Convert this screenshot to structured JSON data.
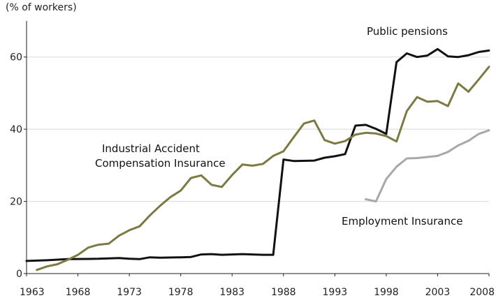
{
  "chart_data": {
    "type": "line",
    "title": "",
    "ylabel": "(% of workers)",
    "xlabel": "",
    "xlim": [
      1963,
      2008
    ],
    "ylim": [
      0,
      70
    ],
    "x_ticks": [
      1963,
      1968,
      1973,
      1978,
      1983,
      1988,
      1993,
      1998,
      2003,
      2008
    ],
    "y_ticks": [
      0,
      20,
      40,
      60
    ],
    "grid": "horizontal",
    "series": [
      {
        "name": "Public pensions",
        "color": "#111111",
        "points": [
          [
            1963,
            3.5
          ],
          [
            1965,
            3.7
          ],
          [
            1967,
            4.0
          ],
          [
            1970,
            4.1
          ],
          [
            1972,
            4.3
          ],
          [
            1973,
            4.1
          ],
          [
            1974,
            4.0
          ],
          [
            1975,
            4.5
          ],
          [
            1976,
            4.4
          ],
          [
            1978,
            4.5
          ],
          [
            1979,
            4.6
          ],
          [
            1980,
            5.3
          ],
          [
            1981,
            5.4
          ],
          [
            1982,
            5.2
          ],
          [
            1983,
            5.3
          ],
          [
            1984,
            5.4
          ],
          [
            1986,
            5.2
          ],
          [
            1987,
            5.2
          ],
          [
            1988,
            31.6
          ],
          [
            1989,
            31.2
          ],
          [
            1991,
            31.3
          ],
          [
            1992,
            32.1
          ],
          [
            1993,
            32.5
          ],
          [
            1994,
            33.1
          ],
          [
            1995,
            41.0
          ],
          [
            1996,
            41.2
          ],
          [
            1997,
            40.1
          ],
          [
            1998,
            38.7
          ],
          [
            1999,
            58.6
          ],
          [
            2000,
            61.0
          ],
          [
            2001,
            60.0
          ],
          [
            2002,
            60.4
          ],
          [
            2003,
            62.2
          ],
          [
            2004,
            60.2
          ],
          [
            2005,
            60.0
          ],
          [
            2006,
            60.5
          ],
          [
            2007,
            61.4
          ],
          [
            2008,
            61.8
          ]
        ]
      },
      {
        "name": "Industrial Accident Compensation Insurance",
        "color": "#7a7a42",
        "points": [
          [
            1964,
            1.0
          ],
          [
            1965,
            2.0
          ],
          [
            1966,
            2.6
          ],
          [
            1967,
            3.8
          ],
          [
            1968,
            5.2
          ],
          [
            1969,
            7.2
          ],
          [
            1970,
            8.0
          ],
          [
            1971,
            8.3
          ],
          [
            1972,
            10.5
          ],
          [
            1973,
            12.0
          ],
          [
            1974,
            13.1
          ],
          [
            1975,
            16.1
          ],
          [
            1976,
            18.8
          ],
          [
            1977,
            21.2
          ],
          [
            1978,
            23.0
          ],
          [
            1979,
            26.5
          ],
          [
            1980,
            27.2
          ],
          [
            1981,
            24.6
          ],
          [
            1982,
            24.0
          ],
          [
            1983,
            27.3
          ],
          [
            1984,
            30.2
          ],
          [
            1985,
            29.9
          ],
          [
            1986,
            30.4
          ],
          [
            1987,
            32.6
          ],
          [
            1988,
            33.9
          ],
          [
            1989,
            37.8
          ],
          [
            1990,
            41.6
          ],
          [
            1991,
            42.4
          ],
          [
            1992,
            37.0
          ],
          [
            1993,
            36.0
          ],
          [
            1994,
            36.7
          ],
          [
            1995,
            38.5
          ],
          [
            1996,
            39.0
          ],
          [
            1997,
            38.8
          ],
          [
            1998,
            38.1
          ],
          [
            1999,
            36.6
          ],
          [
            2000,
            45.0
          ],
          [
            2001,
            48.9
          ],
          [
            2002,
            47.6
          ],
          [
            2003,
            47.8
          ],
          [
            2004,
            46.4
          ],
          [
            2005,
            52.7
          ],
          [
            2006,
            50.4
          ],
          [
            2007,
            53.8
          ],
          [
            2008,
            57.3
          ]
        ]
      },
      {
        "name": "Employment Insurance",
        "color": "#a8a8a8",
        "points": [
          [
            1996,
            20.6
          ],
          [
            1997,
            20.0
          ],
          [
            1998,
            26.2
          ],
          [
            1999,
            29.6
          ],
          [
            2000,
            31.9
          ],
          [
            2001,
            32.0
          ],
          [
            2002,
            32.3
          ],
          [
            2003,
            32.6
          ],
          [
            2004,
            33.7
          ],
          [
            2005,
            35.5
          ],
          [
            2006,
            36.8
          ],
          [
            2007,
            38.7
          ],
          [
            2008,
            39.7
          ]
        ]
      }
    ],
    "annotations": {
      "public_pensions": "Public pensions",
      "iaci_line1": "Industrial Accident",
      "iaci_line2": "Compensation Insurance",
      "employment": "Employment Insurance"
    }
  }
}
